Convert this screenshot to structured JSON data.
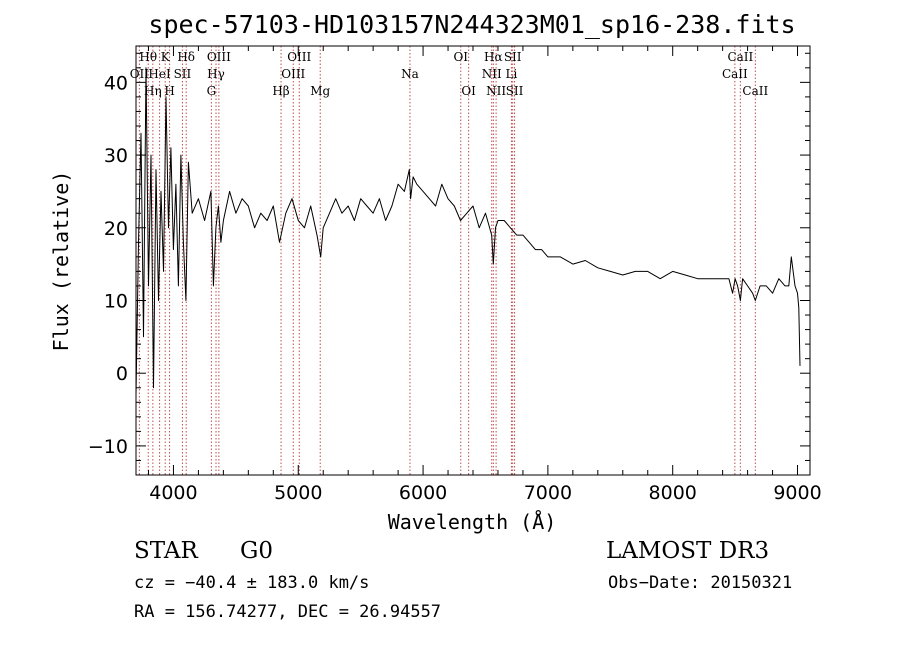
{
  "chart_data": {
    "type": "line",
    "title": "spec-57103-HD103157N244323M01_sp16-238.fits",
    "xlabel": "Wavelength (Å)",
    "ylabel": "Flux (relative)",
    "xlim": [
      3700,
      9100
    ],
    "ylim": [
      -14,
      45
    ],
    "xticks": [
      4000,
      5000,
      6000,
      7000,
      8000,
      9000
    ],
    "yticks": [
      -10,
      0,
      10,
      20,
      30,
      40
    ],
    "series": [
      {
        "name": "flux",
        "x": [
          3700,
          3720,
          3740,
          3760,
          3780,
          3800,
          3820,
          3840,
          3860,
          3880,
          3900,
          3920,
          3940,
          3960,
          3980,
          4000,
          4020,
          4040,
          4060,
          4080,
          4100,
          4120,
          4150,
          4200,
          4250,
          4300,
          4320,
          4340,
          4360,
          4380,
          4400,
          4450,
          4500,
          4550,
          4600,
          4650,
          4700,
          4750,
          4800,
          4850,
          4900,
          4950,
          5000,
          5050,
          5100,
          5150,
          5180,
          5200,
          5250,
          5300,
          5350,
          5400,
          5450,
          5500,
          5550,
          5600,
          5650,
          5700,
          5750,
          5800,
          5850,
          5890,
          5900,
          5920,
          5950,
          6000,
          6050,
          6100,
          6150,
          6200,
          6250,
          6300,
          6350,
          6400,
          6450,
          6500,
          6550,
          6563,
          6580,
          6600,
          6650,
          6700,
          6750,
          6800,
          6850,
          6900,
          6950,
          7000,
          7100,
          7200,
          7300,
          7400,
          7500,
          7600,
          7700,
          7800,
          7900,
          8000,
          8100,
          8200,
          8300,
          8400,
          8450,
          8480,
          8500,
          8520,
          8542,
          8560,
          8600,
          8640,
          8662,
          8700,
          8750,
          8800,
          8850,
          8900,
          8930,
          8950,
          8980,
          9000,
          9010,
          9020
        ],
        "values": [
          -3,
          18,
          33,
          5,
          42,
          12,
          30,
          -2,
          28,
          10,
          25,
          14,
          38,
          20,
          31,
          17,
          26,
          12,
          30,
          18,
          10,
          29,
          22,
          24,
          21,
          25,
          12,
          20,
          23,
          18,
          21,
          25,
          22,
          24,
          23,
          20,
          22,
          21,
          23,
          18,
          22,
          24,
          21,
          20,
          23,
          19,
          16,
          20,
          22,
          24,
          22,
          23,
          21,
          24,
          23,
          22,
          24,
          21,
          23,
          26,
          25,
          28,
          24,
          27,
          26,
          25,
          24,
          23,
          26,
          24,
          23,
          21,
          22,
          23,
          20,
          22,
          19,
          15,
          20,
          21,
          21,
          20,
          19,
          19,
          18,
          17,
          17,
          16,
          16,
          15,
          15.5,
          14.5,
          14,
          13.5,
          14,
          14,
          13,
          14,
          13.5,
          13,
          13,
          13,
          13,
          11,
          13,
          12,
          10,
          13,
          12,
          11,
          10,
          12,
          12,
          11,
          13,
          12,
          12,
          16,
          12,
          11,
          9,
          1
        ]
      }
    ],
    "lines": [
      {
        "name": "OII",
        "x": 3727,
        "row": 2
      },
      {
        "name": "Hθ",
        "x": 3798,
        "row": 1
      },
      {
        "name": "Hη",
        "x": 3835,
        "row": 3
      },
      {
        "name": "HeI",
        "x": 3889,
        "row": 2
      },
      {
        "name": "K",
        "x": 3934,
        "row": 1
      },
      {
        "name": "H",
        "x": 3969,
        "row": 3
      },
      {
        "name": "SII",
        "x": 4072,
        "row": 2
      },
      {
        "name": "Hδ",
        "x": 4102,
        "row": 1
      },
      {
        "name": "G",
        "x": 4304,
        "row": 3
      },
      {
        "name": "Hγ",
        "x": 4341,
        "row": 2
      },
      {
        "name": "OIII",
        "x": 4364,
        "row": 1
      },
      {
        "name": "Hβ",
        "x": 4862,
        "row": 3
      },
      {
        "name": "OIII",
        "x": 4960,
        "row": 2
      },
      {
        "name": "OIII",
        "x": 5008,
        "row": 1
      },
      {
        "name": "Mg",
        "x": 5176,
        "row": 3
      },
      {
        "name": "Na",
        "x": 5895,
        "row": 2
      },
      {
        "name": "OI",
        "x": 6302,
        "row": 1
      },
      {
        "name": "OI",
        "x": 6365,
        "row": 3
      },
      {
        "name": "NII",
        "x": 6550,
        "row": 2
      },
      {
        "name": "Hα",
        "x": 6563,
        "row": 1
      },
      {
        "name": "NII",
        "x": 6585,
        "row": 3
      },
      {
        "name": "Li",
        "x": 6708,
        "row": 2
      },
      {
        "name": "SII",
        "x": 6718,
        "row": 1
      },
      {
        "name": "SII",
        "x": 6733,
        "row": 3
      },
      {
        "name": "CaII",
        "x": 8498,
        "row": 2
      },
      {
        "name": "CaII",
        "x": 8542,
        "row": 1
      },
      {
        "name": "CaII",
        "x": 8662,
        "row": 3
      }
    ]
  },
  "info": {
    "class": "STAR",
    "subclass": "G0",
    "survey": "LAMOST DR3",
    "cz": "cz = −40.4 ± 183.0 km/s",
    "obs_date": "Obs−Date: 20150321",
    "coords": "RA = 156.74277, DEC =  26.94557"
  },
  "colors": {
    "line_marker": "#c0504d",
    "spectrum": "#000000"
  }
}
